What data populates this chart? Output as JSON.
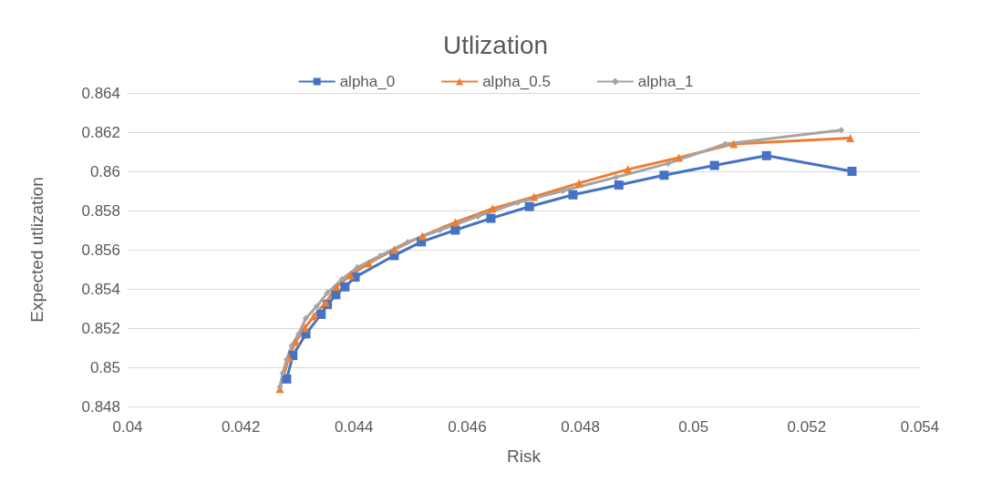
{
  "chart_data": {
    "type": "line",
    "title": "Utlization",
    "xlabel": "Risk",
    "ylabel": "Expected utlization",
    "xlim": [
      0.04,
      0.054
    ],
    "xticks": [
      0.04,
      0.042,
      0.044,
      0.046,
      0.048,
      0.05,
      0.052,
      0.054
    ],
    "ylim": [
      0.848,
      0.864
    ],
    "yticks": [
      0.848,
      0.85,
      0.852,
      0.854,
      0.856,
      0.858,
      0.86,
      0.862,
      0.864
    ],
    "grid": "y",
    "legend": "top",
    "series": [
      {
        "name": "alpha_0",
        "color": "#4472c4",
        "marker": "square",
        "x": [
          0.04281,
          0.04292,
          0.04315,
          0.04342,
          0.04353,
          0.04368,
          0.04384,
          0.04402,
          0.04471,
          0.04519,
          0.04579,
          0.04642,
          0.0471,
          0.04787,
          0.04868,
          0.04948,
          0.05037,
          0.05129,
          0.0528
        ],
        "values": [
          0.8494,
          0.8506,
          0.8517,
          0.8527,
          0.8532,
          0.8537,
          0.8541,
          0.8546,
          0.8557,
          0.8564,
          0.857,
          0.8576,
          0.8582,
          0.8588,
          0.8593,
          0.8598,
          0.8603,
          0.8608,
          0.86
        ]
      },
      {
        "name": "alpha_0.5",
        "color": "#ed7d31",
        "marker": "triangle",
        "x": [
          0.04269,
          0.04285,
          0.04297,
          0.04313,
          0.04329,
          0.0435,
          0.04369,
          0.04394,
          0.04426,
          0.04471,
          0.04521,
          0.04579,
          0.04645,
          0.04718,
          0.04798,
          0.04884,
          0.04974,
          0.05071,
          0.05277
        ],
        "values": [
          0.8489,
          0.8505,
          0.8513,
          0.852,
          0.8526,
          0.8533,
          0.8541,
          0.8547,
          0.8553,
          0.856,
          0.8567,
          0.8574,
          0.8581,
          0.8587,
          0.8594,
          0.8601,
          0.8607,
          0.8614,
          0.8617
        ]
      },
      {
        "name": "alpha_1",
        "color": "#a5a5a5",
        "marker": "diamond",
        "x": [
          0.04269,
          0.04274,
          0.04281,
          0.0429,
          0.04302,
          0.04315,
          0.04334,
          0.04353,
          0.04379,
          0.04406,
          0.04447,
          0.04495,
          0.04552,
          0.04619,
          0.04689,
          0.04769,
          0.04863,
          0.04955,
          0.05056,
          0.05261
        ],
        "values": [
          0.849,
          0.8497,
          0.8504,
          0.8511,
          0.8517,
          0.8525,
          0.8531,
          0.8538,
          0.8545,
          0.8551,
          0.8557,
          0.8564,
          0.857,
          0.8577,
          0.8584,
          0.859,
          0.8597,
          0.8604,
          0.8614,
          0.8621
        ]
      }
    ]
  }
}
